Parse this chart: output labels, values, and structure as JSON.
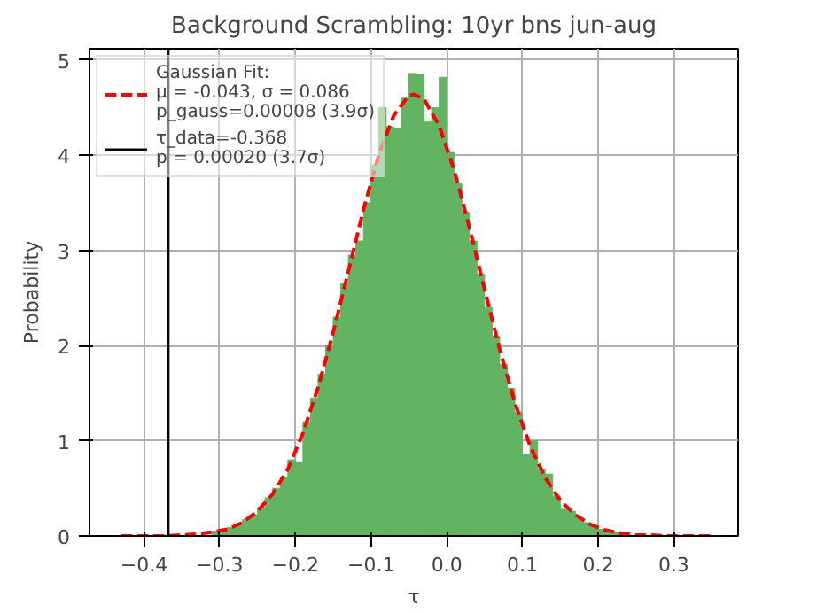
{
  "chart_data": {
    "type": "histogram",
    "title": "Background Scrambling: 10yr bns jun-aug",
    "xlabel": "τ",
    "ylabel": "Probability",
    "bins": [
      -0.31,
      -0.3,
      -0.29,
      -0.28,
      -0.27,
      -0.26,
      -0.25,
      -0.24,
      -0.23,
      -0.22,
      -0.21,
      -0.2,
      -0.19,
      -0.18,
      -0.17,
      -0.16,
      -0.15,
      -0.14,
      -0.13,
      -0.12,
      -0.11,
      -0.1,
      -0.09,
      -0.08,
      -0.07,
      -0.06,
      -0.05,
      -0.04,
      -0.03,
      -0.02,
      -0.01,
      0.0,
      0.01,
      0.02,
      0.03,
      0.04,
      0.05,
      0.06,
      0.07,
      0.08,
      0.09,
      0.1,
      0.11,
      0.12,
      0.13,
      0.14,
      0.15,
      0.16,
      0.17,
      0.18,
      0.19,
      0.2,
      0.21,
      0.22,
      0.23
    ],
    "values": [
      0.05,
      0.07,
      0.09,
      0.12,
      0.17,
      0.22,
      0.3,
      0.4,
      0.5,
      0.62,
      0.8,
      0.78,
      1.2,
      1.45,
      1.7,
      2.0,
      2.3,
      2.65,
      2.95,
      3.1,
      3.5,
      3.9,
      4.5,
      4.3,
      4.28,
      4.6,
      4.86,
      4.85,
      4.35,
      4.5,
      4.82,
      4.03,
      3.7,
      3.4,
      3.1,
      2.75,
      2.4,
      2.1,
      1.8,
      1.55,
      1.3,
      0.86,
      1.0,
      0.7,
      0.65,
      0.42,
      0.28,
      0.26,
      0.19,
      0.14,
      0.1,
      0.07,
      0.05,
      0.04
    ],
    "color": "#62b462",
    "series": [
      {
        "type": "line",
        "name": "Gaussian Fit:\nμ = -0.043, σ = 0.086\np_gauss=0.00008 (3.9σ)",
        "color": "#ff0000",
        "line_style": "dashed",
        "x": [
          -0.43,
          -0.41,
          -0.39,
          -0.37,
          -0.35,
          -0.33,
          -0.31,
          -0.29,
          -0.27,
          -0.25,
          -0.23,
          -0.21,
          -0.19,
          -0.17,
          -0.15,
          -0.13,
          -0.11,
          -0.09,
          -0.07,
          -0.05,
          -0.043,
          -0.03,
          -0.01,
          0.01,
          0.03,
          0.05,
          0.07,
          0.09,
          0.11,
          0.13,
          0.15,
          0.17,
          0.19,
          0.21,
          0.23,
          0.25,
          0.27,
          0.29,
          0.31,
          0.33,
          0.35
        ],
        "values": [
          0.0,
          0.0,
          0.0,
          0.0,
          0.01,
          0.02,
          0.04,
          0.07,
          0.14,
          0.26,
          0.44,
          0.7,
          1.08,
          1.56,
          2.14,
          2.78,
          3.43,
          4.0,
          4.42,
          4.63,
          4.64,
          4.59,
          4.31,
          3.84,
          3.24,
          2.59,
          1.96,
          1.4,
          0.95,
          0.61,
          0.37,
          0.22,
          0.12,
          0.06,
          0.03,
          0.01,
          0.01,
          0.0,
          0.0,
          0.0,
          0.0
        ]
      }
    ],
    "ref_lines": [
      {
        "axis": "x",
        "value": -0.368,
        "label": "τ_data=-0.368\np = 0.00020 (3.7σ)",
        "color": "#000000"
      }
    ],
    "xlim": [
      -0.472,
      0.385
    ],
    "ylim": [
      0,
      5.12
    ],
    "xticks": [
      {
        "value": -0.4,
        "label": "−0.4"
      },
      {
        "value": -0.3,
        "label": "−0.3"
      },
      {
        "value": -0.2,
        "label": "−0.2"
      },
      {
        "value": -0.1,
        "label": "−0.1"
      },
      {
        "value": 0.0,
        "label": "0.0"
      },
      0.1,
      0.2,
      0.3
    ],
    "yticks": [
      0,
      1,
      2,
      3,
      4,
      5
    ],
    "grid": true,
    "legend": "top left"
  }
}
